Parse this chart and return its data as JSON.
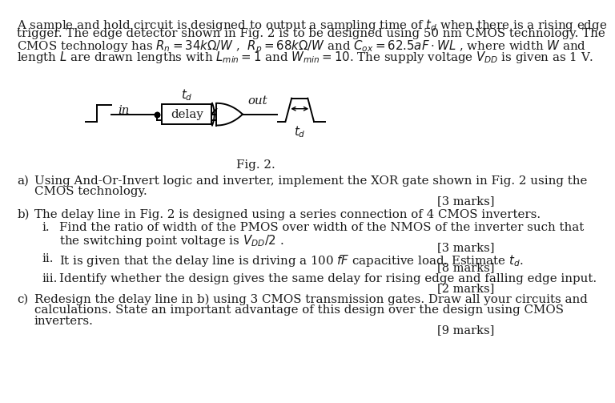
{
  "bg_color": "#ffffff",
  "text_color": "#1a1a1a",
  "font_size_body": 10.8,
  "font_size_marks": 10.5,
  "line1": "A sample and hold circuit is designed to output a sampling time of $t_d$ when there is a rising edge",
  "line2": "trigger. The edge detector shown in Fig. 2 is to be designed using 50 nm CMOS technology. The",
  "line3": "CMOS technology has $R_n = 34k\\Omega/W$ ,  $R_p = 68k\\Omega/W$ and $C_{ox} = 62.5aF \\cdot WL$ , where width $W$ and",
  "line4": "length $L$ are drawn lengths with $L_{min} = 1$ and $W_{min}=10$. The supply voltage $V_{DD}$ is given as 1 V.",
  "fig_caption": "Fig. 2.",
  "qa1": "Using And-Or-Invert logic and inverter, implement the XOR gate shown in Fig. 2 using the",
  "qa2": "CMOS technology.",
  "marks_a": "[3 marks]",
  "qb0": "The delay line in Fig. 2 is designed using a series connection of 4 CMOS inverters.",
  "qbi1": "Find the ratio of width of the PMOS over width of the NMOS of the inverter such that",
  "qbi2": "the switching point voltage is $V_{DD}/2$ .",
  "marks_bi": "[3 marks]",
  "qbii": "It is given that the delay line is driving a 100 $fF$ capacitive load. Estimate $t_d$.",
  "marks_bii": "[8 marks]",
  "qbiii": "Identify whether the design gives the same delay for rising edge and falling edge input.",
  "marks_biii": "[2 marks]",
  "qc1": "Redesign the delay line in b) using 3 CMOS transmission gates. Draw all your circuits and",
  "qc2": "calculations. State an important advantage of this design over the design using CMOS",
  "qc3": "inverters.",
  "marks_c": "[9 marks]"
}
